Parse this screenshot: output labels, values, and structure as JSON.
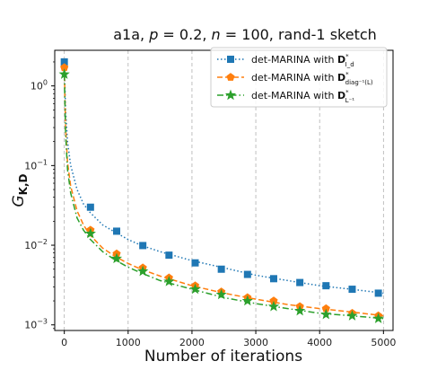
{
  "chart_data": {
    "type": "line",
    "title": "a1a, p = 0.2, n = 100, rand-1 sketch",
    "title_parts": {
      "pre": "a1a, ",
      "p_sym": "p",
      "p_val": " = 0.2, ",
      "n_sym": "n",
      "n_val": " = 100, rand-1 sketch"
    },
    "xlabel": "Number of iterations",
    "ylabel": "G_{K,D}",
    "ylabel_parts": {
      "main": "G",
      "sub": "K,D"
    },
    "xlim": [
      -150,
      5150
    ],
    "ylim": [
      0.00085,
      2.8
    ],
    "yscale": "log",
    "x_ticks": [
      0,
      1000,
      2000,
      3000,
      4000,
      5000
    ],
    "x_tick_labels": [
      "0",
      "1000",
      "2000",
      "3000",
      "4000",
      "5000"
    ],
    "y_ticks": [
      0.001,
      0.01,
      0.1,
      1
    ],
    "y_tick_labels": [
      {
        "base": "10",
        "exp": "−3"
      },
      {
        "base": "10",
        "exp": "−2"
      },
      {
        "base": "10",
        "exp": "−1"
      },
      {
        "base": "10",
        "exp": "0"
      }
    ],
    "grid": {
      "x": true,
      "y": false,
      "style": "dashed"
    },
    "legend": {
      "placement": "top-right"
    },
    "series": [
      {
        "name": "det-MARINA with D*_{I_d}",
        "legend_parts": {
          "pre": "det-MARINA with ",
          "sym": "D",
          "sup": "*",
          "sub": "I_d"
        },
        "color": "#1f77b4",
        "linestyle": "dotted",
        "marker": "square",
        "x": [
          0,
          20,
          50,
          100,
          200,
          300,
          400,
          600,
          800,
          1000,
          1200,
          1500,
          2000,
          2500,
          3000,
          3500,
          4000,
          4500,
          5000
        ],
        "y": [
          2.0,
          0.5,
          0.2,
          0.1,
          0.05,
          0.033,
          0.026,
          0.018,
          0.0145,
          0.0118,
          0.01,
          0.0083,
          0.0064,
          0.0052,
          0.0042,
          0.0036,
          0.0031,
          0.0028,
          0.0025
        ],
        "markers_x": [
          0,
          410,
          820,
          1230,
          1640,
          2050,
          2460,
          2870,
          3280,
          3690,
          4100,
          4510,
          4920
        ],
        "markers_y": [
          2.0,
          0.03,
          0.015,
          0.0099,
          0.0075,
          0.006,
          0.005,
          0.0043,
          0.0038,
          0.0034,
          0.0031,
          0.0028,
          0.0025
        ]
      },
      {
        "name": "det-MARINA with D*_{diag^{-1}(L)}",
        "legend_parts": {
          "pre": "det-MARINA with ",
          "sym": "D",
          "sup": "*",
          "sub": "diag⁻¹(L)"
        },
        "color": "#ff7f0e",
        "linestyle": "dashed",
        "marker": "pentagon",
        "x": [
          0,
          20,
          50,
          100,
          200,
          300,
          400,
          600,
          800,
          1000,
          1200,
          1500,
          2000,
          2500,
          3000,
          3500,
          4000,
          4500,
          5000
        ],
        "y": [
          1.7,
          0.3,
          0.11,
          0.055,
          0.027,
          0.018,
          0.0135,
          0.0092,
          0.0072,
          0.0059,
          0.005,
          0.0041,
          0.0031,
          0.0025,
          0.0021,
          0.0018,
          0.0016,
          0.00145,
          0.0013
        ],
        "markers_x": [
          0,
          410,
          820,
          1230,
          1640,
          2050,
          2460,
          2870,
          3280,
          3690,
          4100,
          4510,
          4920
        ],
        "markers_y": [
          1.7,
          0.0155,
          0.0078,
          0.0052,
          0.0039,
          0.0031,
          0.0026,
          0.0022,
          0.002,
          0.0017,
          0.0016,
          0.0014,
          0.0013
        ]
      },
      {
        "name": "det-MARINA with D*_{L^{-1}}",
        "legend_parts": {
          "pre": "det-MARINA with ",
          "sym": "D",
          "sup": "*",
          "sub": "L⁻¹"
        },
        "color": "#2ca02c",
        "linestyle": "dashdot",
        "marker": "star",
        "x": [
          0,
          20,
          50,
          100,
          200,
          300,
          400,
          600,
          800,
          1000,
          1200,
          1500,
          2000,
          2500,
          3000,
          3500,
          4000,
          4500,
          5000
        ],
        "y": [
          1.4,
          0.25,
          0.09,
          0.045,
          0.022,
          0.0155,
          0.012,
          0.0083,
          0.0065,
          0.0053,
          0.0045,
          0.0036,
          0.0028,
          0.0022,
          0.00185,
          0.0016,
          0.0014,
          0.0013,
          0.0012
        ],
        "markers_x": [
          0,
          410,
          820,
          1230,
          1640,
          2050,
          2460,
          2870,
          3280,
          3690,
          4100,
          4510,
          4920
        ],
        "markers_y": [
          1.4,
          0.014,
          0.0068,
          0.0047,
          0.0035,
          0.0028,
          0.0024,
          0.002,
          0.0017,
          0.0015,
          0.00135,
          0.0013,
          0.0012
        ]
      }
    ]
  }
}
